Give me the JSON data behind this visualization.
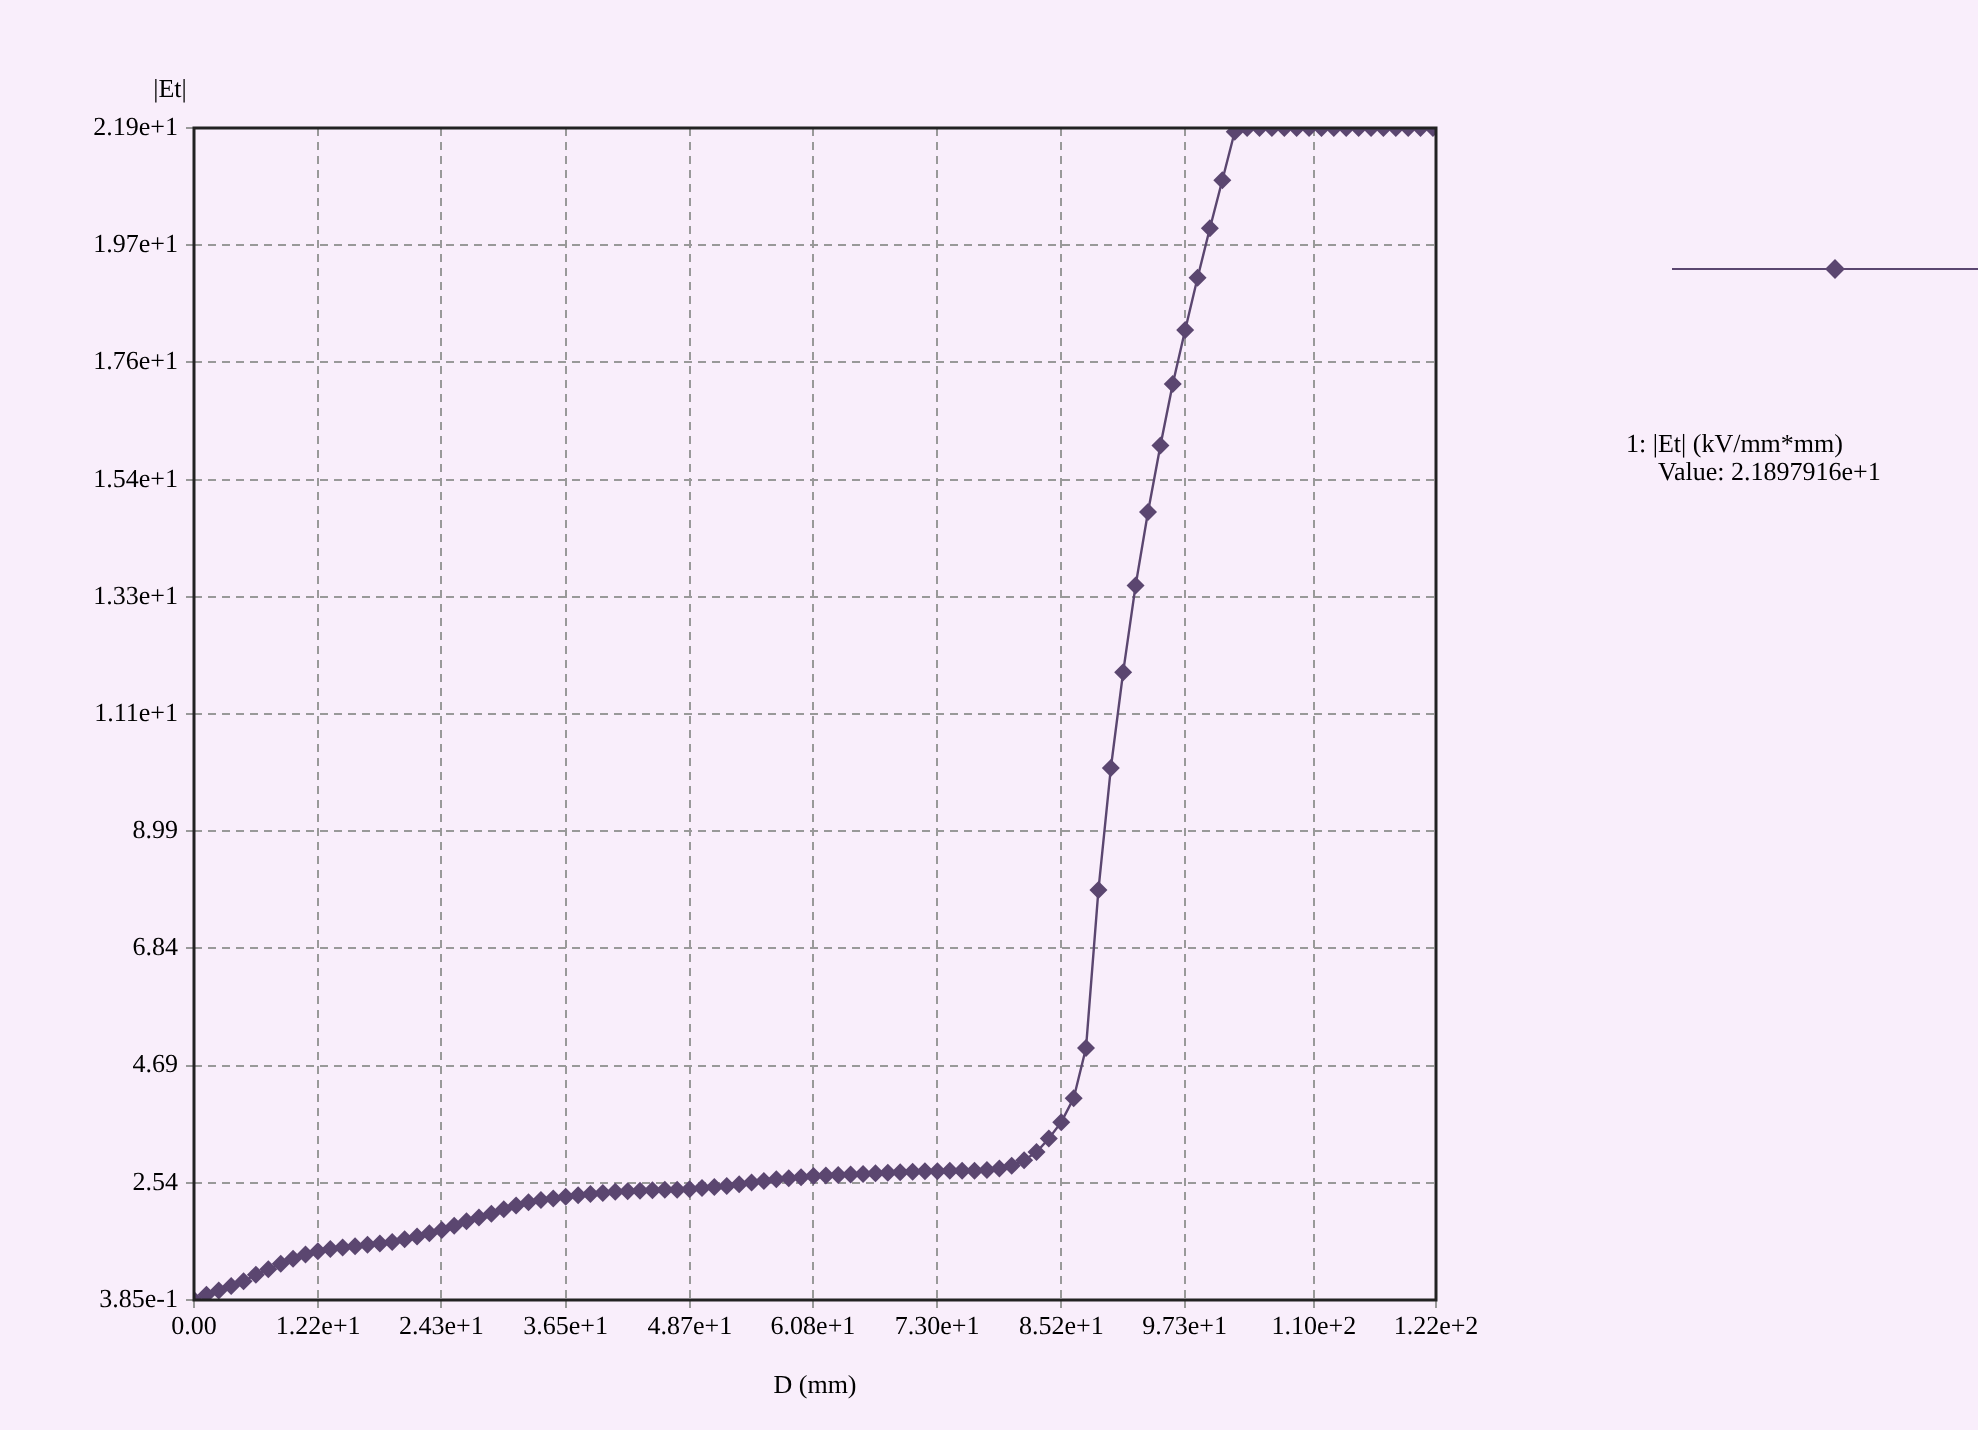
{
  "chart_data": {
    "type": "line",
    "xlabel": "D (mm)",
    "ylabel": "|Et|",
    "x": [
      0,
      1.22,
      2.43,
      3.65,
      4.87,
      6.08,
      7.3,
      8.52,
      9.73,
      10.95,
      12.17,
      13.39,
      14.6,
      15.82,
      17.04,
      18.26,
      19.47,
      20.69,
      21.91,
      23.12,
      24.34,
      25.56,
      26.77,
      27.99,
      29.21,
      30.43,
      31.64,
      32.86,
      34.08,
      35.29,
      36.51,
      37.73,
      38.94,
      40.16,
      41.38,
      42.6,
      43.81,
      45.03,
      46.25,
      47.46,
      48.68,
      49.9,
      51.11,
      52.33,
      53.55,
      54.77,
      55.98,
      57.2,
      58.42,
      59.63,
      60.85,
      62.07,
      63.28,
      64.5,
      65.72,
      66.94,
      68.15,
      69.37,
      70.59,
      71.8,
      73.02,
      74.24,
      75.45,
      76.67,
      77.89,
      79.11,
      80.32,
      81.54,
      82.76,
      83.97,
      85.19,
      86.41,
      87.62,
      88.84,
      90.06,
      91.27,
      92.49,
      93.71,
      94.93,
      96.14,
      97.36,
      98.58,
      99.79,
      101.01,
      102.23,
      103.45,
      104.66,
      105.88,
      107.1,
      108.31,
      109.53,
      110.75,
      111.96,
      113.18,
      114.4,
      115.62,
      116.83,
      118.05,
      119.27,
      120.48,
      121.7
    ],
    "series": [
      {
        "name": "1: |Et| (kV/mm*mm)",
        "color": "#5b4670",
        "values": [
          0.385,
          0.48,
          0.56,
          0.64,
          0.73,
          0.85,
          0.95,
          1.05,
          1.14,
          1.22,
          1.28,
          1.32,
          1.35,
          1.37,
          1.4,
          1.42,
          1.45,
          1.5,
          1.55,
          1.61,
          1.67,
          1.75,
          1.83,
          1.9,
          1.97,
          2.05,
          2.12,
          2.18,
          2.22,
          2.25,
          2.28,
          2.31,
          2.33,
          2.35,
          2.37,
          2.38,
          2.39,
          2.4,
          2.41,
          2.41,
          2.42,
          2.44,
          2.46,
          2.48,
          2.51,
          2.54,
          2.57,
          2.6,
          2.62,
          2.64,
          2.66,
          2.67,
          2.68,
          2.69,
          2.7,
          2.71,
          2.72,
          2.73,
          2.74,
          2.75,
          2.75,
          2.76,
          2.76,
          2.76,
          2.77,
          2.8,
          2.85,
          2.95,
          3.1,
          3.35,
          3.65,
          4.09,
          5.01,
          7.91,
          10.15,
          11.91,
          13.5,
          14.85,
          16.07,
          17.2,
          18.19,
          19.15,
          20.06,
          20.94,
          21.83,
          21.9,
          21.9,
          21.9,
          21.9,
          21.9,
          21.9,
          21.9,
          21.9,
          21.9,
          21.9,
          21.9,
          21.9,
          21.9,
          21.9,
          21.9,
          21.9
        ]
      }
    ],
    "annotations": [
      "Value: 2.1897916e+1"
    ],
    "xlim": [
      0,
      122
    ],
    "xticks": [
      {
        "value": 0,
        "label": "0.00"
      },
      {
        "value": 12.2,
        "label": "1.22e+1"
      },
      {
        "value": 24.3,
        "label": "2.43e+1"
      },
      {
        "value": 36.5,
        "label": "3.65e+1"
      },
      {
        "value": 48.7,
        "label": "4.87e+1"
      },
      {
        "value": 60.8,
        "label": "6.08e+1"
      },
      {
        "value": 73,
        "label": "7.30e+1"
      },
      {
        "value": 85.2,
        "label": "8.52e+1"
      },
      {
        "value": 97.3,
        "label": "9.73e+1"
      },
      {
        "value": 110,
        "label": "1.10e+2"
      },
      {
        "value": 122,
        "label": "1.22e+2"
      }
    ],
    "ylim": [
      0.385,
      21.9
    ],
    "yticks": [
      {
        "value": 0.385,
        "label": "3.85e-1"
      },
      {
        "value": 2.536,
        "label": "2.54"
      },
      {
        "value": 4.688,
        "label": "4.69"
      },
      {
        "value": 6.839,
        "label": "6.84"
      },
      {
        "value": 8.99,
        "label": "8.99"
      },
      {
        "value": 11.14,
        "label": "1.11e+1"
      },
      {
        "value": 13.29,
        "label": "1.33e+1"
      },
      {
        "value": 15.44,
        "label": "1.54e+1"
      },
      {
        "value": 17.6,
        "label": "1.76e+1"
      },
      {
        "value": 19.75,
        "label": "1.97e+1"
      },
      {
        "value": 21.9,
        "label": "2.19e+1"
      }
    ],
    "grid": true,
    "legend": "right",
    "marker": "diamond",
    "line_style": "solid"
  }
}
